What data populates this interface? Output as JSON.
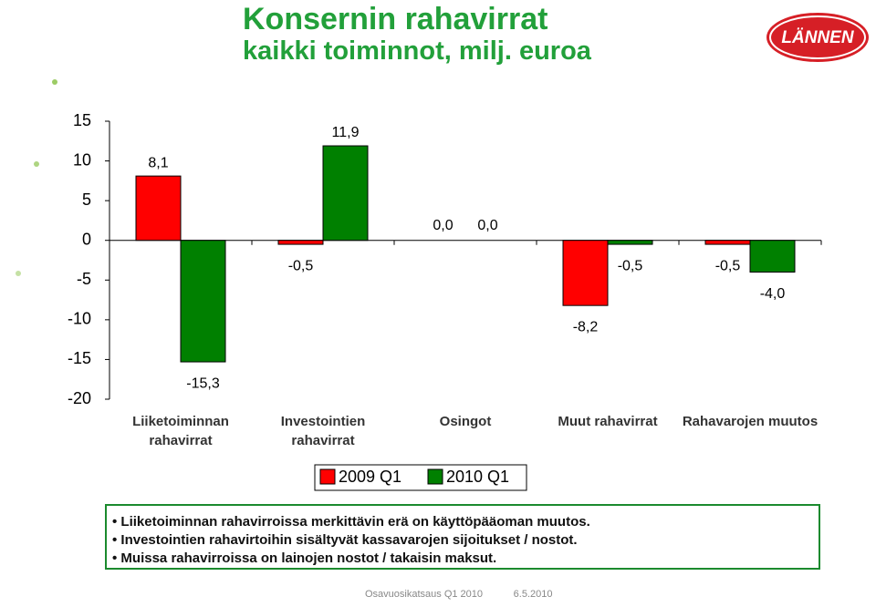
{
  "header": {
    "title": "Konsernin rahavirrat",
    "subtitle": "kaikki toiminnot, milj. euroa"
  },
  "logo": "LÄNNEN",
  "chart_data": {
    "type": "bar",
    "categories": [
      "Liiketoiminnan rahavirrat",
      "Investointien rahavirrat",
      "Osingot",
      "Muut rahavirrat",
      "Rahavarojen muutos"
    ],
    "series": [
      {
        "name": "2009 Q1",
        "color": "#ff0000",
        "values": [
          8.1,
          -0.5,
          0.0,
          -8.2,
          -0.5
        ],
        "value_labels": [
          "8,1",
          "-0,5",
          "0,0",
          "-8,2",
          "-0,5"
        ]
      },
      {
        "name": "2010 Q1",
        "color": "#008000",
        "values": [
          -15.3,
          11.9,
          0.0,
          -0.5,
          -4.0
        ],
        "value_labels": [
          "-15,3",
          "11,9",
          "0,0",
          "-0,5",
          "-4,0"
        ]
      }
    ],
    "ylim": [
      -20,
      15
    ],
    "yticks": [
      -20,
      -15,
      -10,
      -5,
      0,
      5,
      10,
      15
    ],
    "grid": false
  },
  "notes": [
    "Liiketoiminnan rahavirroissa merkittävin erä on käyttöpääoman muutos.",
    "Investointien rahavirtoihin sisältyvät kassavarojen sijoitukset / nostot.",
    "Muissa rahavirroissa on lainojen nostot / takaisin maksut."
  ],
  "footer": {
    "event": "Osavuosikatsaus Q1 2010",
    "date": "6.5.2010"
  }
}
